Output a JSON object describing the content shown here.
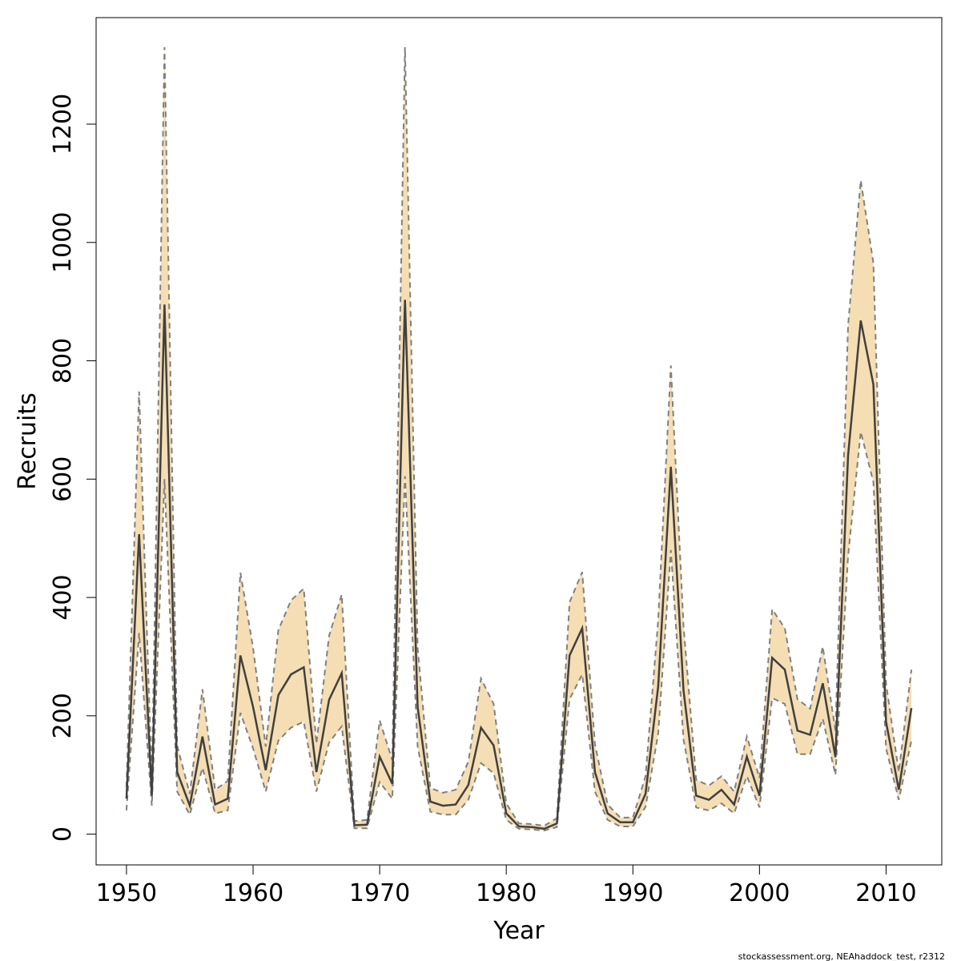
{
  "chart_data": {
    "type": "line",
    "xlabel": "Year",
    "ylabel": "Recruits",
    "xlim": [
      1947.6,
      2014.4
    ],
    "ylim": [
      -52,
      1380
    ],
    "x_ticks": [
      1950,
      1960,
      1970,
      1980,
      1990,
      2000,
      2010
    ],
    "y_ticks": [
      0,
      200,
      400,
      600,
      800,
      1000,
      1200
    ],
    "grid": false,
    "legend": "none",
    "colors": {
      "band": "#F5DEB3",
      "bound_line": "#808080",
      "estimate_line": "#404040"
    },
    "x": [
      1950,
      1951,
      1952,
      1953,
      1954,
      1955,
      1956,
      1957,
      1958,
      1959,
      1960,
      1961,
      1962,
      1963,
      1964,
      1965,
      1966,
      1967,
      1968,
      1969,
      1970,
      1971,
      1972,
      1973,
      1974,
      1975,
      1976,
      1977,
      1978,
      1979,
      1980,
      1981,
      1982,
      1983,
      1984,
      1985,
      1986,
      1987,
      1988,
      1989,
      1990,
      1991,
      1992,
      1993,
      1994,
      1995,
      1996,
      1997,
      1998,
      1999,
      2000,
      2001,
      2002,
      2003,
      2004,
      2005,
      2006,
      2007,
      2008,
      2009,
      2010,
      2011,
      2012
    ],
    "series": [
      {
        "role": "estimate",
        "values": [
          60,
          507,
          65,
          895,
          105,
          48,
          165,
          50,
          60,
          302,
          215,
          108,
          235,
          270,
          282,
          105,
          227,
          272,
          15,
          16,
          131,
          85,
          903,
          215,
          55,
          48,
          50,
          83,
          180,
          150,
          35,
          13,
          12,
          9,
          18,
          302,
          348,
          105,
          35,
          20,
          20,
          68,
          250,
          621,
          243,
          65,
          58,
          75,
          50,
          131,
          65,
          298,
          278,
          175,
          168,
          255,
          130,
          640,
          868,
          760,
          190,
          75,
          213
        ]
      },
      {
        "role": "upper",
        "values": [
          80,
          748,
          88,
          1330,
          150,
          68,
          245,
          75,
          90,
          442,
          315,
          148,
          345,
          395,
          415,
          153,
          335,
          405,
          22,
          24,
          192,
          125,
          1330,
          315,
          78,
          70,
          75,
          122,
          263,
          220,
          52,
          18,
          17,
          14,
          27,
          392,
          443,
          152,
          50,
          28,
          28,
          98,
          362,
          792,
          352,
          92,
          82,
          98,
          72,
          165,
          95,
          380,
          348,
          228,
          212,
          317,
          175,
          860,
          1105,
          965,
          255,
          105,
          278
        ]
      },
      {
        "role": "lower",
        "values": [
          40,
          340,
          48,
          600,
          72,
          33,
          112,
          35,
          40,
          205,
          145,
          72,
          158,
          180,
          190,
          72,
          155,
          182,
          10,
          10,
          88,
          60,
          605,
          148,
          38,
          33,
          33,
          58,
          120,
          103,
          24,
          9,
          8,
          6,
          12,
          228,
          270,
          72,
          24,
          13,
          13,
          46,
          170,
          480,
          160,
          45,
          40,
          52,
          35,
          98,
          45,
          230,
          220,
          135,
          135,
          195,
          100,
          470,
          680,
          595,
          145,
          58,
          158
        ]
      }
    ]
  },
  "footer_text": "stockassessment.org, NEAhaddock_test, r2312"
}
